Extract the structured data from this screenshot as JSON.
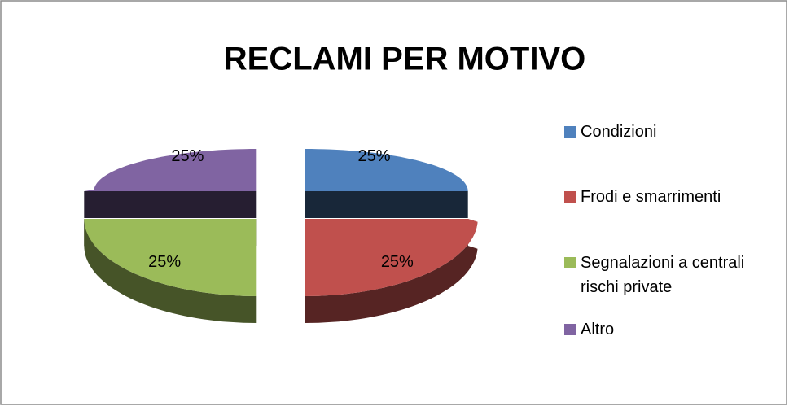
{
  "chart_data": {
    "type": "pie",
    "title": "RECLAMI PER MOTIVO",
    "categories": [
      "Condizioni",
      "Frodi e smarrimenti",
      "Segnalazioni a centrali rischi private",
      "Altro"
    ],
    "values": [
      25,
      25,
      25,
      25
    ],
    "value_labels": [
      "25%",
      "25%",
      "25%",
      "25%"
    ],
    "colors": [
      "#4f81bd",
      "#c0504d",
      "#9bbb59",
      "#8064a2"
    ],
    "legend": "right"
  }
}
